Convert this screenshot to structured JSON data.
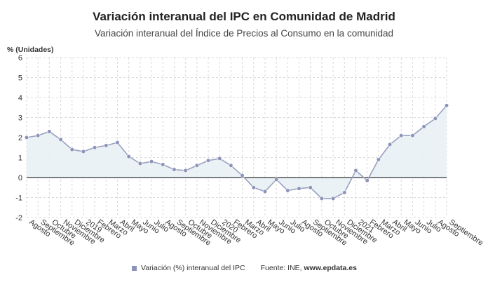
{
  "header": {
    "title": "Variación interanual del IPC en Comunidad de Madrid",
    "subtitle": "Variación interanual del Índice de Precios al Consumo en la comunidad",
    "ylabel": "% (Unidades)"
  },
  "legend": {
    "series_label": "Variación (%) interanual del IPC",
    "source_prefix": "Fuente: INE, ",
    "source_name": "www.epdata.es"
  },
  "colors": {
    "line": "#9aa0bf",
    "marker": "#8c93b8",
    "fill": "#e8f1f4",
    "grid": "#d9d9d9",
    "zero": "#333333"
  },
  "chart_data": {
    "type": "line",
    "ylim": [
      -2,
      6
    ],
    "yticks": [
      -2,
      -1,
      0,
      1,
      2,
      3,
      4,
      5,
      6
    ],
    "grid": true,
    "categories": [
      "Agosto",
      "Septiembre",
      "Octubre",
      "Noviembre",
      "Diciembre",
      "2019",
      "Febrero",
      "Marzo",
      "Abril",
      "Mayo",
      "Junio",
      "Julio",
      "Agosto",
      "Septiembre",
      "Octubre",
      "Noviembre",
      "Diciembre",
      "2020",
      "Febrero",
      "Marzo",
      "Abril",
      "Mayo",
      "Junio",
      "Julio",
      "Agosto",
      "Septiembre",
      "Octubre",
      "Noviembre",
      "Diciembre",
      "2021",
      "Febrero",
      "Marzo",
      "Abril",
      "Mayo",
      "Junio",
      "Julio",
      "Agosto",
      "Septiembre"
    ],
    "series": [
      {
        "name": "Variación (%) interanual del IPC",
        "values": [
          2.0,
          2.1,
          2.3,
          1.9,
          1.4,
          1.3,
          1.5,
          1.6,
          1.75,
          1.05,
          0.7,
          0.8,
          0.65,
          0.4,
          0.35,
          0.6,
          0.85,
          0.95,
          0.6,
          0.1,
          -0.5,
          -0.7,
          -0.1,
          -0.65,
          -0.55,
          -0.5,
          -1.05,
          -1.05,
          -0.75,
          0.35,
          -0.15,
          0.9,
          1.65,
          2.1,
          2.1,
          2.55,
          2.95,
          3.6
        ]
      }
    ]
  }
}
